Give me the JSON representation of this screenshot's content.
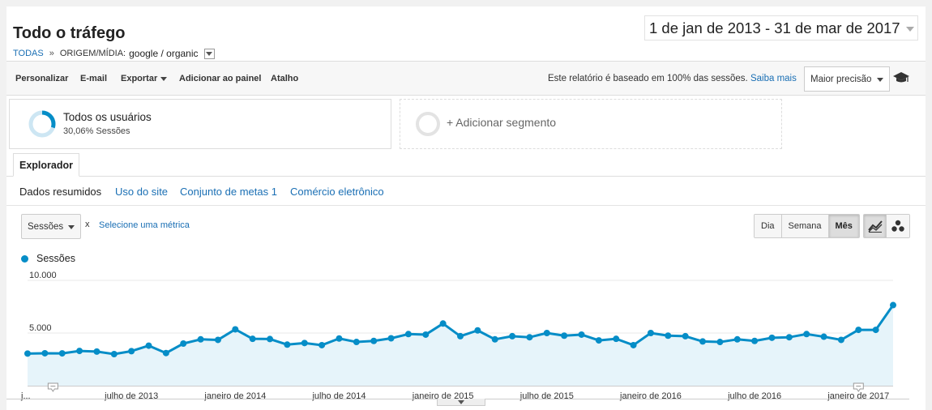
{
  "header": {
    "title": "Todo o tráfego",
    "breadcrumb": {
      "root": "TODAS",
      "separator": "»",
      "dimension": "ORIGEM/MÍDIA:",
      "value": "google / organic"
    },
    "date_range": "1 de jan de 2013 - 31 de mar de 2017"
  },
  "toolbar": {
    "customize": "Personalizar",
    "email": "E-mail",
    "export": "Exportar",
    "add_dashboard": "Adicionar ao painel",
    "shortcut": "Atalho",
    "sampling_note": "Este relatório é baseado em 100% das sessões.",
    "learn_more": "Saiba mais",
    "precision": "Maior precisão"
  },
  "segments": {
    "active": {
      "title": "Todos os usuários",
      "subtitle": "30,06% Sessões",
      "share": 0.3006
    },
    "add": "+ Adicionar segmento"
  },
  "tabs": {
    "explorer": "Explorador"
  },
  "subtabs": [
    "Dados resumidos",
    "Uso do site",
    "Conjunto de metas 1",
    "Comércio eletrônico"
  ],
  "metric": {
    "selected": "Sessões",
    "remove": "x",
    "select_link": "Selecione uma métrica"
  },
  "period": {
    "day": "Dia",
    "week": "Semana",
    "month": "Mês",
    "active": "Mês"
  },
  "colors": {
    "series": "#058dc7",
    "area": "#e6f4fa",
    "link": "#1a6fb4"
  },
  "icons": {
    "view_line": "line-chart-icon",
    "view_motion": "motion-chart-icon",
    "capsule": "graduation-cap-icon"
  },
  "chart_data": {
    "type": "area",
    "series": [
      {
        "name": "Sessões",
        "x": [
          "2013-01",
          "2013-02",
          "2013-03",
          "2013-04",
          "2013-05",
          "2013-06",
          "2013-07",
          "2013-08",
          "2013-09",
          "2013-10",
          "2013-11",
          "2013-12",
          "2014-01",
          "2014-02",
          "2014-03",
          "2014-04",
          "2014-05",
          "2014-06",
          "2014-07",
          "2014-08",
          "2014-09",
          "2014-10",
          "2014-11",
          "2014-12",
          "2015-01",
          "2015-02",
          "2015-03",
          "2015-04",
          "2015-05",
          "2015-06",
          "2015-07",
          "2015-08",
          "2015-09",
          "2015-10",
          "2015-11",
          "2015-12",
          "2016-01",
          "2016-02",
          "2016-03",
          "2016-04",
          "2016-05",
          "2016-06",
          "2016-07",
          "2016-08",
          "2016-09",
          "2016-10",
          "2016-11",
          "2016-12",
          "2017-01",
          "2017-02",
          "2017-03"
        ],
        "values": [
          3050,
          3080,
          3070,
          3300,
          3240,
          3000,
          3280,
          3800,
          3100,
          4000,
          4400,
          4350,
          5350,
          4450,
          4430,
          3900,
          4050,
          3850,
          4480,
          4150,
          4250,
          4500,
          4900,
          4850,
          5900,
          4700,
          5250,
          4400,
          4700,
          4600,
          5000,
          4750,
          4850,
          4300,
          4450,
          3850,
          5000,
          4750,
          4700,
          4200,
          4150,
          4400,
          4250,
          4550,
          4600,
          4900,
          4650,
          4350,
          5300,
          5300,
          7650
        ]
      }
    ],
    "x_tick_labels": [
      "j...",
      "julho de 2013",
      "janeiro de 2014",
      "julho de 2014",
      "janeiro de 2015",
      "julho de 2015",
      "janeiro de 2016",
      "julho de 2016",
      "janeiro de 2017"
    ],
    "y_tick_labels": [
      "10.000",
      "5.000"
    ],
    "y_ticks": [
      10000,
      5000
    ],
    "ylim": [
      0,
      10000
    ],
    "annotations": [
      "2013-02",
      "2017-01"
    ],
    "grid": true,
    "legend": "top-left"
  }
}
